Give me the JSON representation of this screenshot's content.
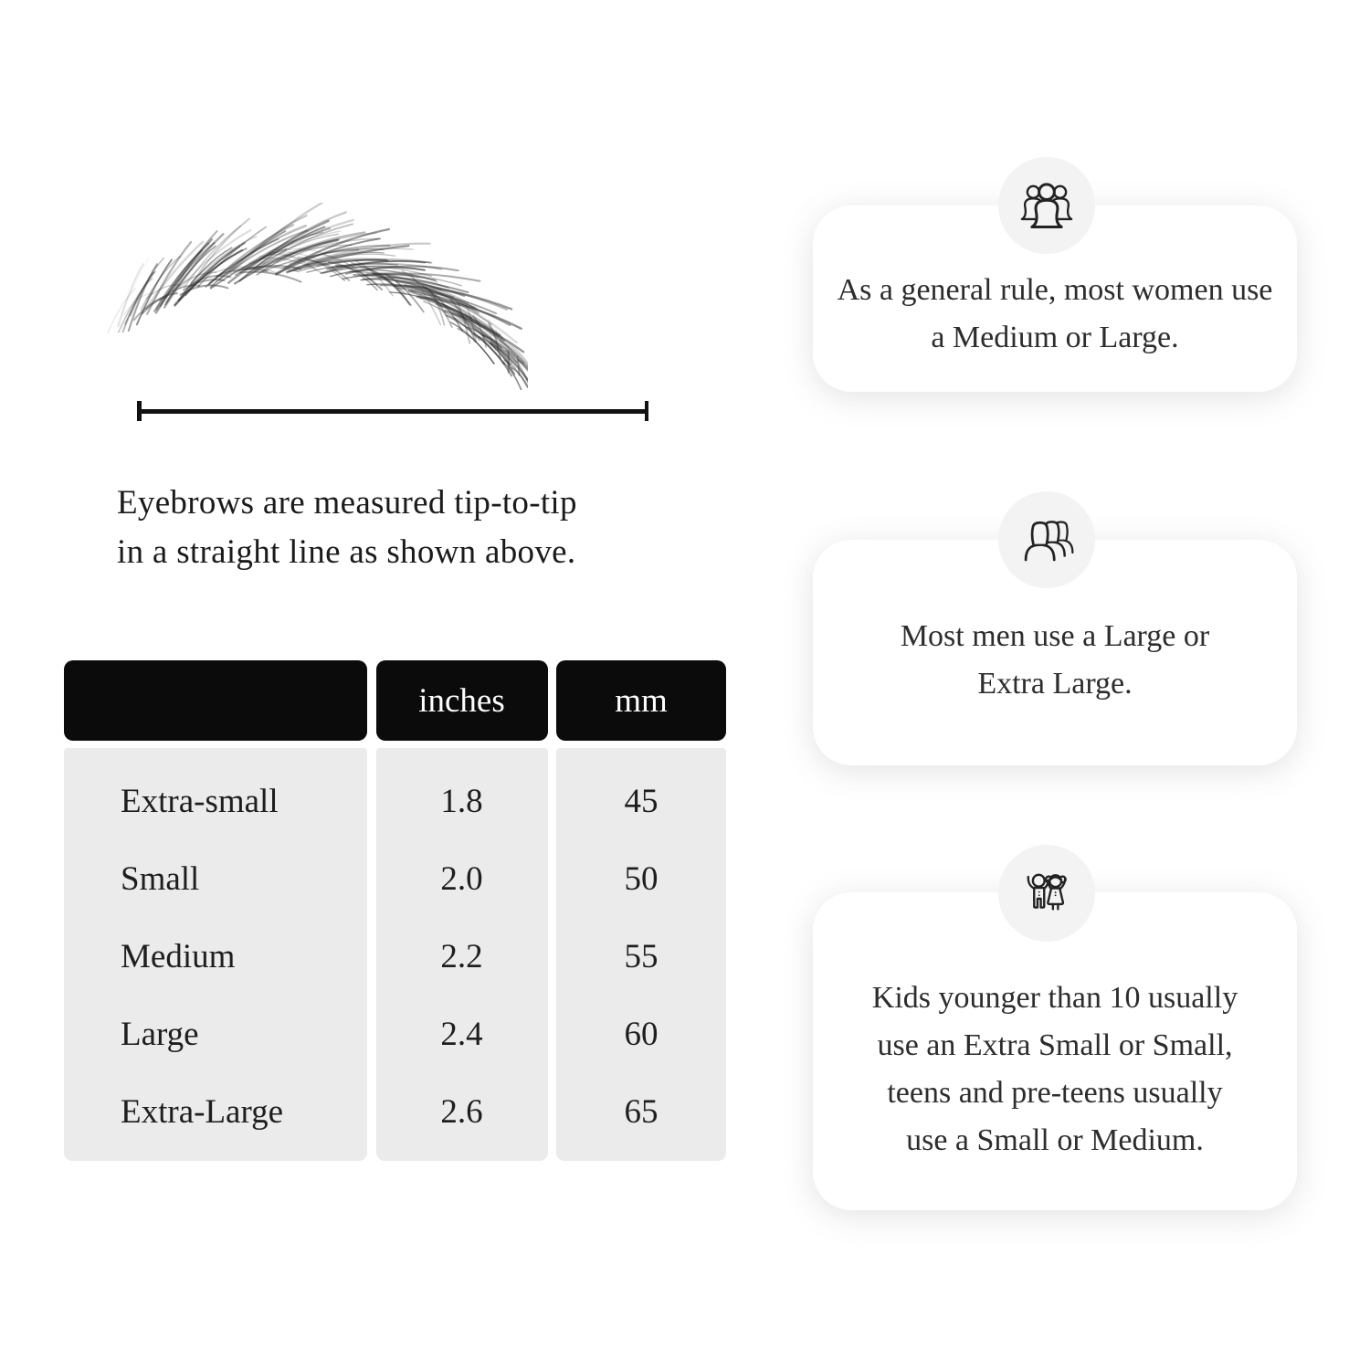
{
  "measure": {
    "caption_line1": "Eyebrows are measured tip-to-tip",
    "caption_line2": "in a straight line as shown above."
  },
  "table": {
    "headers": [
      "",
      "inches",
      "mm"
    ],
    "rows": [
      {
        "label": "Extra-small",
        "inches": "1.8",
        "mm": "45"
      },
      {
        "label": "Small",
        "inches": "2.0",
        "mm": "50"
      },
      {
        "label": "Medium",
        "inches": "2.2",
        "mm": "55"
      },
      {
        "label": "Large",
        "inches": "2.4",
        "mm": "60"
      },
      {
        "label": "Extra-Large",
        "inches": "2.6",
        "mm": "65"
      }
    ]
  },
  "cards": [
    {
      "icon": "women-group-icon",
      "text": "As a general rule, most women use a Medium or Large."
    },
    {
      "icon": "men-group-icon",
      "text": "Most men use a Large or Extra Large."
    },
    {
      "icon": "kids-icon",
      "text": "Kids younger than 10 usually use an Extra Small or Small, teens and pre-teens usually use a Small or Medium."
    }
  ],
  "colors": {
    "page_bg": "#ffffff",
    "header_bg": "#0b0b0b",
    "header_text": "#ffffff",
    "table_body_bg": "#ebebeb",
    "icon_circle_bg": "#f3f3f3",
    "card_bg": "#ffffff",
    "text": "#1e1e1e"
  }
}
